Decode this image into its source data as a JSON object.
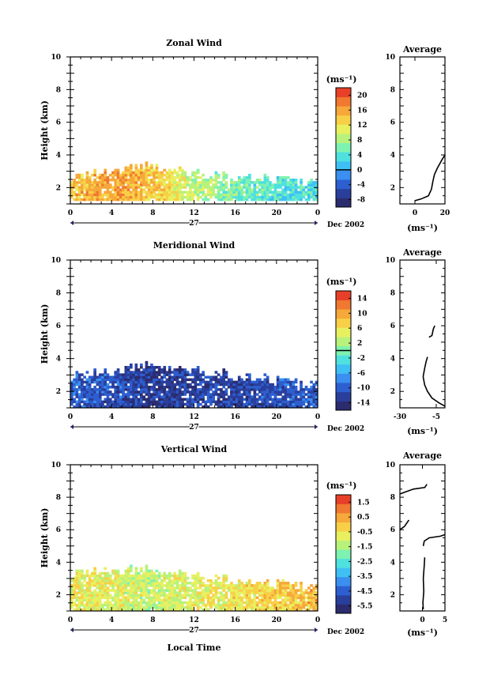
{
  "figure": {
    "date_label": "Dec 2002",
    "day_label": "27",
    "time_axis_label": "Local Time",
    "y_label": "Height (km)",
    "unit_label": "(ms⁻¹)",
    "avg_title": "Average"
  },
  "colors": {
    "scale": [
      "#2b2c6e",
      "#2a3f9c",
      "#2d5fd0",
      "#3a8ff0",
      "#3fc0f5",
      "#4fe0e0",
      "#7ef2b0",
      "#b8f27c",
      "#e8f060",
      "#f8d048",
      "#f6a83a",
      "#f07830",
      "#e84028"
    ]
  },
  "chart_data": [
    {
      "type": "heatmap",
      "title": "Zonal Wind",
      "xlabel": "",
      "ylabel": "Height (km)",
      "x_ticks": [
        "0",
        "4",
        "8",
        "12",
        "16",
        "20",
        "0"
      ],
      "xlim": [
        0,
        24
      ],
      "ylim": [
        1,
        10
      ],
      "y_ticks": [
        "2",
        "4",
        "6",
        "8",
        "10"
      ],
      "colorbar": {
        "unit": "(ms⁻¹)",
        "ticks": [
          "20",
          "16",
          "12",
          "8",
          "4",
          "0",
          "-4",
          "-8"
        ],
        "range": [
          -10,
          22
        ],
        "zero_line": 0
      },
      "data_summary": {
        "height_range_km": [
          1.2,
          3.6
        ],
        "time_range_h": [
          0,
          24
        ],
        "profile": [
          [
            0,
            2.6,
            14
          ],
          [
            4,
            3.0,
            16
          ],
          [
            8,
            3.3,
            14
          ],
          [
            12,
            2.8,
            9
          ],
          [
            16,
            2.6,
            6
          ],
          [
            20,
            2.4,
            4
          ],
          [
            24,
            2.2,
            3
          ]
        ]
      },
      "average": {
        "title": "Average",
        "xlim": [
          -10,
          20
        ],
        "x_ticks": [
          "0",
          "20"
        ],
        "ylim": [
          1,
          10
        ],
        "y_ticks": [
          "2",
          "4",
          "6",
          "8",
          "10"
        ],
        "xlabel": "(ms⁻¹)",
        "segments": [
          [
            [
              0,
              1.2
            ],
            [
              4,
              1.3
            ],
            [
              9,
              1.5
            ],
            [
              11,
              1.9
            ],
            [
              12,
              2.4
            ],
            [
              13,
              2.8
            ],
            [
              15,
              3.2
            ],
            [
              18,
              3.7
            ],
            [
              20,
              4.0
            ]
          ]
        ]
      }
    },
    {
      "type": "heatmap",
      "title": "Meridional Wind",
      "xlabel": "",
      "ylabel": "Height (km)",
      "x_ticks": [
        "0",
        "4",
        "8",
        "12",
        "16",
        "20",
        "0"
      ],
      "xlim": [
        0,
        24
      ],
      "ylim": [
        1,
        10
      ],
      "y_ticks": [
        "2",
        "4",
        "6",
        "8",
        "10"
      ],
      "colorbar": {
        "unit": "(ms⁻¹)",
        "ticks": [
          "14",
          "10",
          "6",
          "2",
          "-2",
          "-6",
          "-10",
          "-14"
        ],
        "range": [
          -16,
          16
        ],
        "zero_line": 0
      },
      "data_summary": {
        "height_range_km": [
          1.0,
          3.8
        ],
        "time_range_h": [
          0,
          24
        ],
        "profile": [
          [
            0,
            2.9,
            -10
          ],
          [
            4,
            3.2,
            -11
          ],
          [
            8,
            3.6,
            -13
          ],
          [
            12,
            3.2,
            -12
          ],
          [
            16,
            2.9,
            -12
          ],
          [
            20,
            2.6,
            -11
          ],
          [
            24,
            2.2,
            -10
          ]
        ]
      },
      "average": {
        "title": "Average",
        "xlim": [
          -30,
          1
        ],
        "x_ticks": [
          "-30",
          "-5"
        ],
        "ylim": [
          1,
          10
        ],
        "y_ticks": [
          "2",
          "4",
          "6",
          "8",
          "10"
        ],
        "xlabel": "(ms⁻¹)",
        "segments": [
          [
            [
              1,
              1.1
            ],
            [
              -3,
              1.3
            ],
            [
              -8,
              1.6
            ],
            [
              -11,
              2.0
            ],
            [
              -13,
              2.4
            ],
            [
              -14,
              2.9
            ],
            [
              -13,
              3.4
            ],
            [
              -12,
              3.8
            ],
            [
              -11,
              4.1
            ]
          ],
          [
            [
              -10,
              5.3
            ],
            [
              -8,
              5.4
            ],
            [
              -7,
              5.8
            ],
            [
              -6,
              6.0
            ]
          ]
        ]
      }
    },
    {
      "type": "heatmap",
      "title": "Vertical Wind",
      "xlabel": "Local Time",
      "ylabel": "Height (km)",
      "x_ticks": [
        "0",
        "4",
        "8",
        "12",
        "16",
        "20",
        "0"
      ],
      "xlim": [
        0,
        24
      ],
      "ylim": [
        1,
        10
      ],
      "y_ticks": [
        "2",
        "4",
        "6",
        "8",
        "10"
      ],
      "colorbar": {
        "unit": "(ms⁻¹)",
        "ticks": [
          "1.5",
          "0.5",
          "-0.5",
          "-1.5",
          "-2.5",
          "-3.5",
          "-4.5",
          "-5.5"
        ],
        "range": [
          -6,
          2
        ]
      },
      "data_summary": {
        "height_range_km": [
          1.0,
          3.6
        ],
        "time_range_h": [
          0,
          24
        ],
        "profile": [
          [
            0,
            3.3,
            -0.6
          ],
          [
            4,
            3.5,
            -0.9
          ],
          [
            8,
            3.5,
            -1.2
          ],
          [
            12,
            3.1,
            -0.8
          ],
          [
            16,
            2.8,
            -0.5
          ],
          [
            20,
            2.6,
            -0.2
          ],
          [
            24,
            2.3,
            0.2
          ]
        ]
      },
      "average": {
        "title": "Average",
        "xlim": [
          -5,
          5
        ],
        "x_ticks": [
          "0",
          "5"
        ],
        "ylim": [
          1,
          10
        ],
        "y_ticks": [
          "2",
          "4",
          "6",
          "8",
          "10"
        ],
        "xlabel": "(ms⁻¹)",
        "segments": [
          [
            [
              0.2,
              1.1
            ],
            [
              0.1,
              1.5
            ],
            [
              0.3,
              2.2
            ],
            [
              0.2,
              3.0
            ],
            [
              0.4,
              3.8
            ],
            [
              0.5,
              4.3
            ]
          ],
          [
            [
              0.2,
              5.0
            ],
            [
              0.4,
              5.3
            ],
            [
              1.5,
              5.5
            ],
            [
              4,
              5.6
            ],
            [
              5,
              5.7
            ]
          ],
          [
            [
              -5,
              6.0
            ],
            [
              -4,
              6.2
            ],
            [
              -3,
              6.6
            ]
          ],
          [
            [
              -5,
              8.2
            ],
            [
              -4,
              8.3
            ],
            [
              -2,
              8.5
            ],
            [
              0.5,
              8.6
            ],
            [
              1.0,
              8.8
            ]
          ]
        ]
      }
    }
  ]
}
